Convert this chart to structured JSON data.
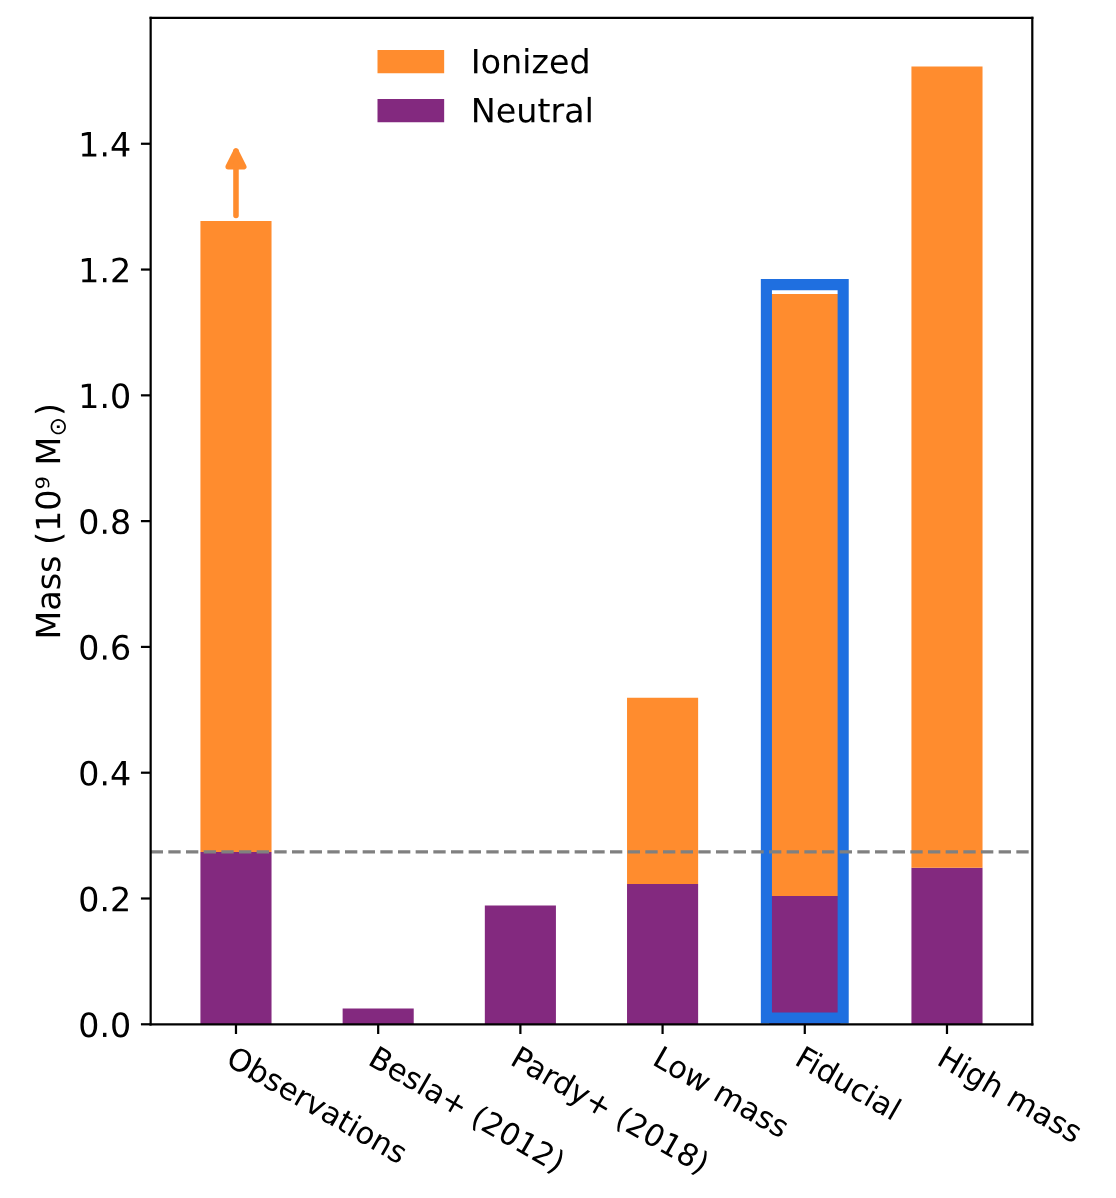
{
  "chart_data": {
    "type": "bar",
    "stacked": true,
    "ylabel": "Mass (10⁹ M$_{⊙}$)",
    "categories": [
      "Observations",
      "Besla+ (2012)",
      "Pardy+ (2018)",
      "Low mass",
      "Fiducial",
      "High mass"
    ],
    "series": [
      {
        "name": "Neutral",
        "color": "#83297f",
        "values": [
          0.274,
          0.025,
          0.189,
          0.223,
          0.204,
          0.249
        ]
      },
      {
        "name": "Ionized",
        "color": "#ff8c2e",
        "values": [
          1.003,
          null,
          null,
          0.296,
          0.957,
          1.274
        ]
      }
    ],
    "ylim": [
      0,
      1.6
    ],
    "yticks": [
      {
        "value": 0.0,
        "label": "0.0"
      },
      {
        "value": 0.2,
        "label": "0.2"
      },
      {
        "value": 0.4,
        "label": "0.4"
      },
      {
        "value": 0.6,
        "label": "0.6"
      },
      {
        "value": 0.8,
        "label": "0.8"
      },
      {
        "value": 1.0,
        "label": "1.0"
      },
      {
        "value": 1.2,
        "label": "1.2"
      },
      {
        "value": 1.4,
        "label": "1.4"
      }
    ],
    "ref_lines": [
      {
        "axis": "y",
        "value": 0.274,
        "color": "#808080",
        "line_style": "dashed"
      }
    ],
    "legend": "top",
    "grid": false
  }
}
